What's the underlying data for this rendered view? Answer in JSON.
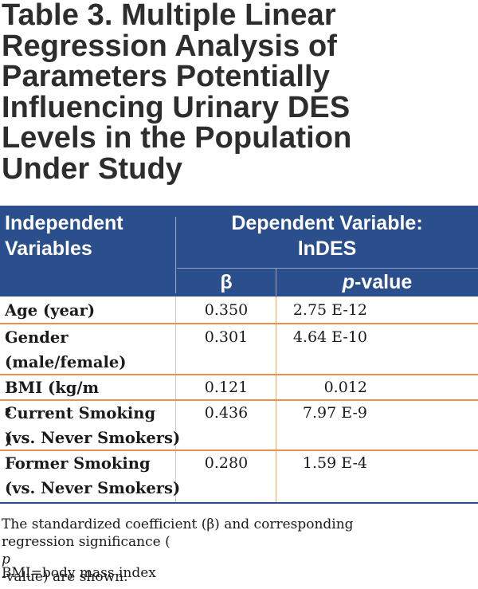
{
  "title": {
    "lines": [
      "Table 3. Multiple Linear",
      "Regression Analysis of",
      "Parameters Potentially",
      "Influencing Urinary DES",
      "Levels in the Population",
      "Under Study"
    ]
  },
  "header": {
    "independent_lines": [
      "Independent",
      "Variables"
    ],
    "dependent_lines": [
      "Dependent Variable:",
      "lnDES"
    ],
    "beta_label": "β",
    "p_label_italic": "p",
    "p_label_rest": "-value"
  },
  "rows": [
    {
      "label_lines": [
        "Age (year)"
      ],
      "beta": "0.350",
      "p": "2.75 E-12"
    },
    {
      "label_lines": [
        "Gender",
        "(male/female)"
      ],
      "beta": "0.301",
      "p": "4.64 E-10"
    },
    {
      "label_main": "BMI (kg/m",
      "label_sup": "2",
      "label_end": ")",
      "beta": "0.121",
      "p": "0.012"
    },
    {
      "label_lines": [
        "Current Smoking",
        "(vs. Never Smokers)"
      ],
      "beta": "0.436",
      "p": "7.97 E-9"
    },
    {
      "label_lines": [
        "Former Smoking",
        "(vs. Never Smokers)"
      ],
      "beta": "0.280",
      "p": "1.59 E-4"
    }
  ],
  "footnote": {
    "line1": "The standardized coefficient (β) and corresponding",
    "line2_a": "regression significance (",
    "line2_italic": "p",
    "line2_b": "-value) are shown.",
    "abbrev": "BMI=body mass index"
  }
}
